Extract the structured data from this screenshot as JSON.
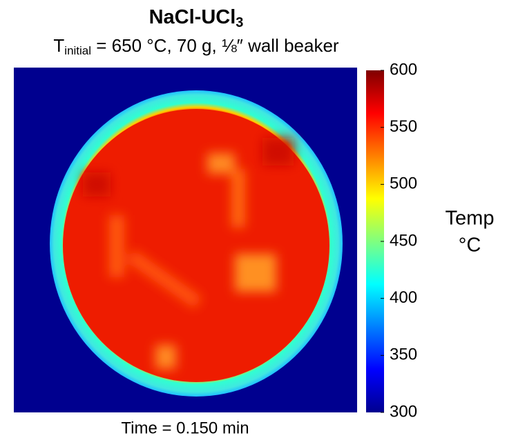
{
  "chart_data": {
    "type": "heatmap",
    "title": {
      "main": "NaCl-UCl",
      "sub": "3"
    },
    "subtitle": {
      "main": "T",
      "sub": "initial",
      "rest": " = 650 °C, 70 g, ⅛″ wall beaker"
    },
    "xlabel": "Time = 0.150 min",
    "colorbar_label": [
      "Temp",
      "°C"
    ],
    "colormap": "jet",
    "clim": [
      300,
      600
    ],
    "cticks": [
      300,
      350,
      400,
      450,
      500,
      550,
      600
    ]
  }
}
